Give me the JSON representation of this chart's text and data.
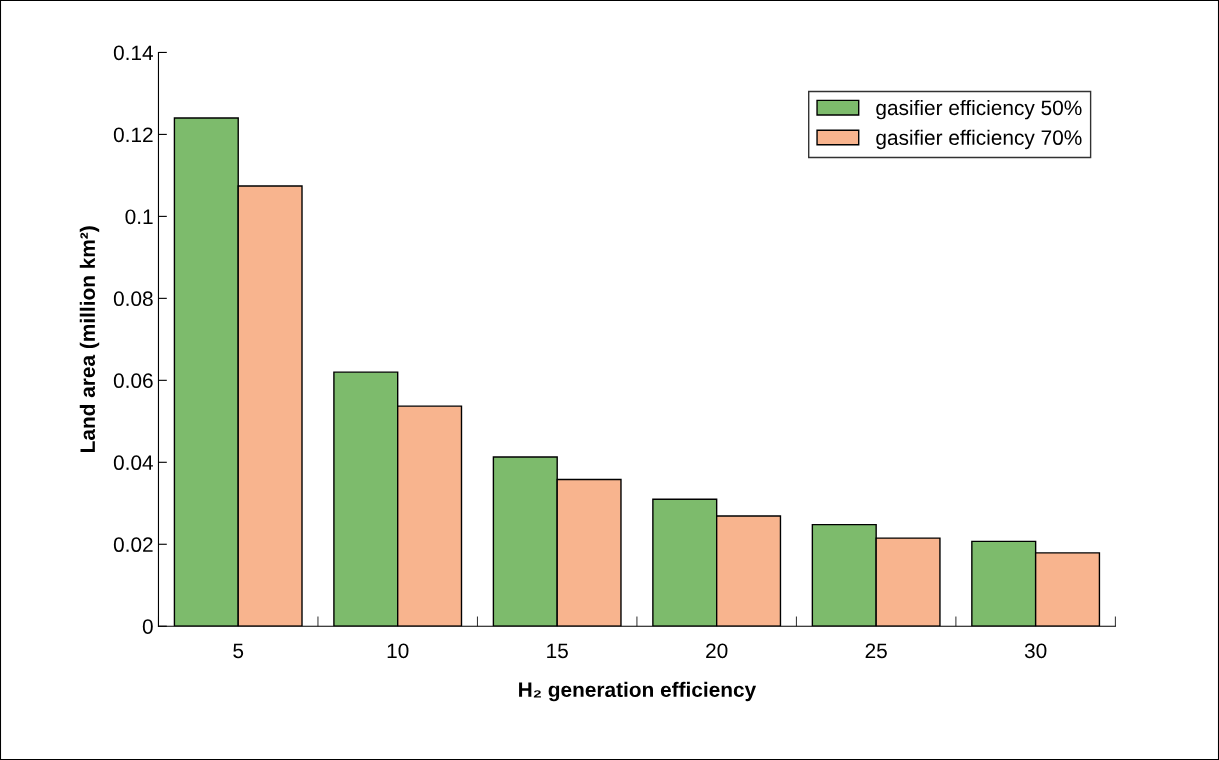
{
  "chart_data": {
    "type": "bar",
    "xlabel": "H₂ generation efficiency",
    "ylabel": "Land area (million km²)",
    "categories": [
      "5",
      "10",
      "15",
      "20",
      "25",
      "30"
    ],
    "series": [
      {
        "name": "gasifier efficiency 50%",
        "color": "#7dbb6c",
        "values": [
          0.124,
          0.062,
          0.0413,
          0.031,
          0.0248,
          0.0207
        ]
      },
      {
        "name": "gasifier efficiency 70%",
        "color": "#f8b48e",
        "values": [
          0.1074,
          0.0537,
          0.0358,
          0.0269,
          0.0215,
          0.0179
        ]
      }
    ],
    "ylim": [
      0,
      0.14
    ],
    "yticks": [
      0,
      0.02,
      0.04,
      0.06,
      0.08,
      0.1,
      0.12,
      0.14
    ],
    "grid": false,
    "legend": "top right"
  }
}
